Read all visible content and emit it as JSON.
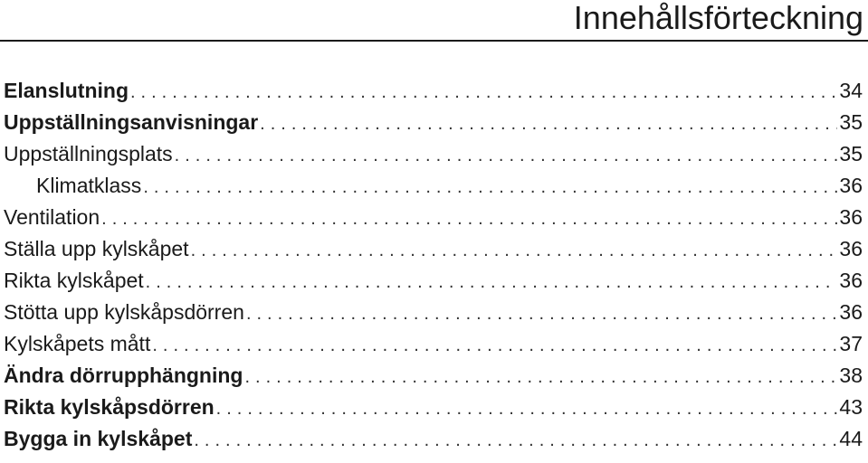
{
  "page": {
    "title": "Innehållsförteckning"
  },
  "toc": {
    "entries": [
      {
        "label": "Elanslutning",
        "page": "34",
        "bold": true,
        "level": 1
      },
      {
        "label": "Uppställningsanvisningar",
        "page": "35",
        "bold": true,
        "level": 1
      },
      {
        "label": "Uppställningsplats",
        "page": "35",
        "bold": false,
        "level": 1
      },
      {
        "label": "Klimatklass",
        "page": "36",
        "bold": false,
        "level": 2
      },
      {
        "label": "Ventilation",
        "page": "36",
        "bold": false,
        "level": 1
      },
      {
        "label": "Ställa upp kylskåpet",
        "page": "36",
        "bold": false,
        "level": 1
      },
      {
        "label": "Rikta kylskåpet",
        "page": "36",
        "bold": false,
        "level": 1
      },
      {
        "label": "Stötta upp kylskåpsdörren",
        "page": "36",
        "bold": false,
        "level": 1
      },
      {
        "label": "Kylskåpets mått",
        "page": "37",
        "bold": false,
        "level": 1
      },
      {
        "label": "Ändra dörrupphängning",
        "page": "38",
        "bold": true,
        "level": 1
      },
      {
        "label": "Rikta kylskåpsdörren",
        "page": "43",
        "bold": true,
        "level": 1
      },
      {
        "label": "Bygga in kylskåpet",
        "page": "44",
        "bold": true,
        "level": 1
      }
    ]
  }
}
